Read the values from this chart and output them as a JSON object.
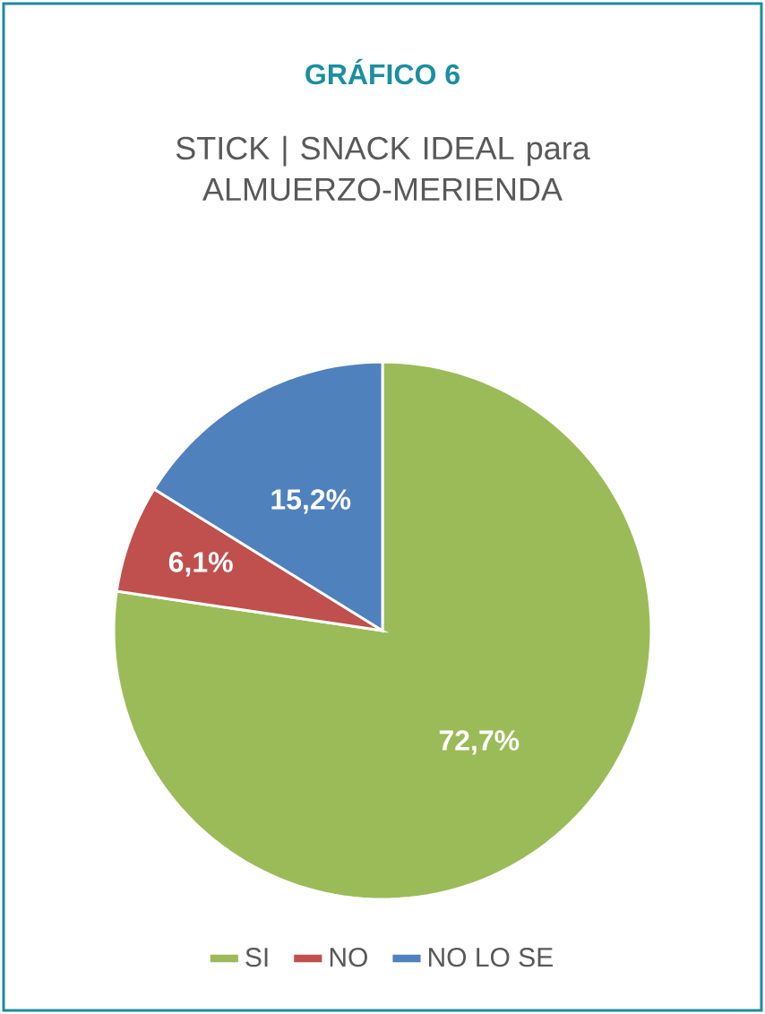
{
  "chart_data": {
    "type": "pie",
    "title": "GRÁFICO 6",
    "subtitle": "STICK | SNACK IDEAL para ALMUERZO-MERIENDA",
    "categories": [
      "SI",
      "NO",
      "NO LO SE"
    ],
    "values": [
      72.7,
      6.1,
      15.2
    ],
    "value_labels": [
      "72,7%",
      "6,1%",
      "15,2%"
    ],
    "colors": [
      "#9bbb59",
      "#c0504d",
      "#4f81bd"
    ],
    "legend": "bottom"
  }
}
